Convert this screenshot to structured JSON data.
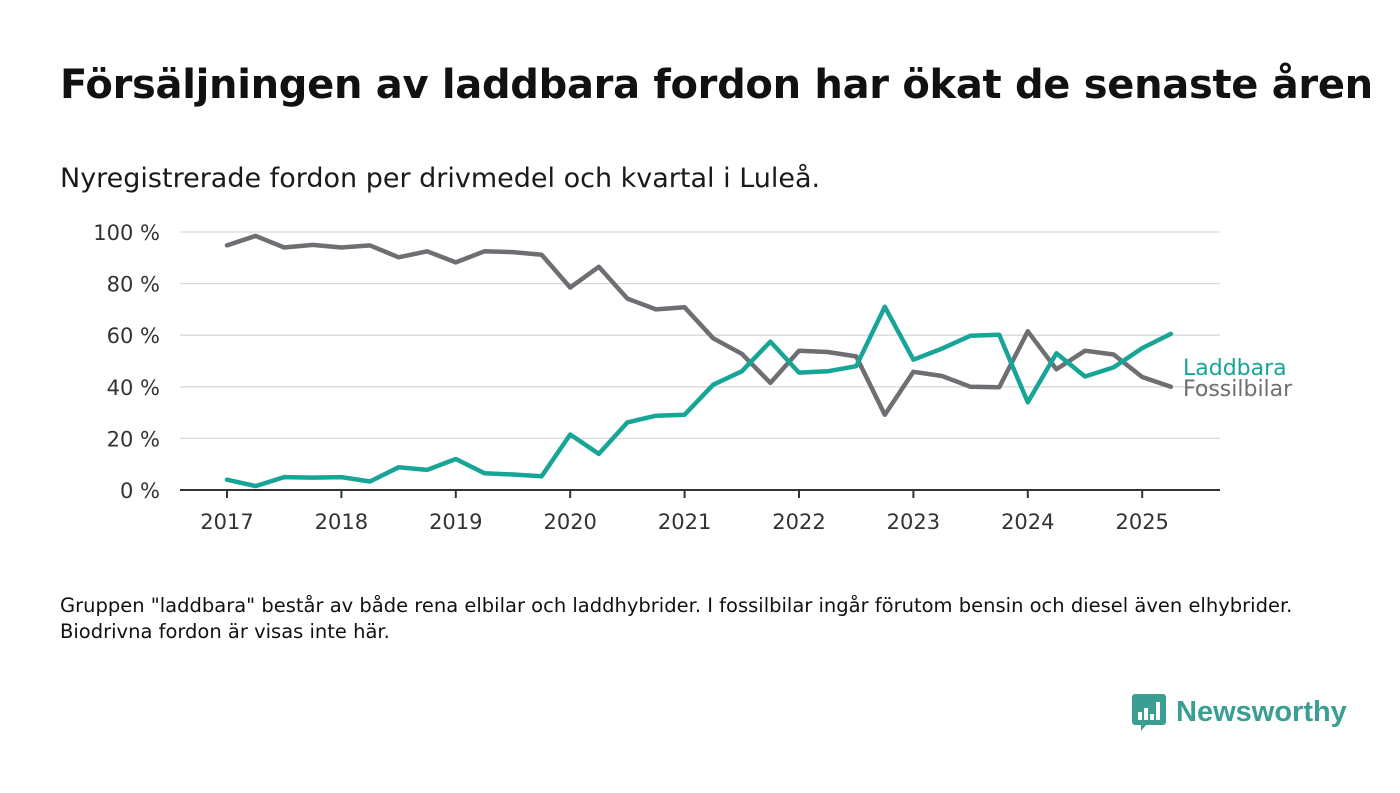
{
  "title": "Försäljningen av laddbara fordon har ökat de senaste åren",
  "subtitle": "Nyregistrerade fordon per drivmedel och kvartal i Luleå.",
  "note": "Gruppen \"laddbara\" består av både rena elbilar och laddhybrider. I fossilbilar ingår förutom bensin och diesel även elhybrider. Biodrivna fordon är visas inte här.",
  "logo": {
    "name": "Newsworthy",
    "icon": "bar-chart-speech-bubble-icon",
    "color": "#3b9e92"
  },
  "chart_data": {
    "type": "line",
    "x_start": "2017-Q1",
    "x_step": "quarter",
    "x_ticks": [
      "2017",
      "2018",
      "2019",
      "2020",
      "2021",
      "2022",
      "2023",
      "2024",
      "2025"
    ],
    "y_ticks": [
      "0 %",
      "20 %",
      "40 %",
      "60 %",
      "80 %",
      "100 %"
    ],
    "ylim": [
      0,
      100
    ],
    "grid": true,
    "series": [
      {
        "name": "Laddbara",
        "color": "#16a596",
        "values": [
          4,
          1.5,
          5,
          4.8,
          5,
          3.3,
          8.8,
          7.8,
          12,
          6.5,
          6,
          5.3,
          21.5,
          14,
          26.2,
          28.8,
          29.2,
          40.8,
          46,
          57.5,
          45.5,
          46,
          48,
          71,
          50.5,
          54.8,
          59.8,
          60.2,
          34,
          53,
          44,
          47.5,
          55,
          60.5
        ]
      },
      {
        "name": "Fossilbilar",
        "color": "#6e6e73",
        "values": [
          94.8,
          98.5,
          94,
          95,
          94,
          94.8,
          90.2,
          92.5,
          88.2,
          92.5,
          92.2,
          91.2,
          78.5,
          86.5,
          74.2,
          70,
          70.8,
          58.8,
          52.8,
          41.5,
          54,
          53.5,
          51.8,
          29.2,
          45.8,
          44.2,
          40,
          39.8,
          61.5,
          46.8,
          54,
          52.5,
          43.8,
          40
        ]
      }
    ]
  }
}
